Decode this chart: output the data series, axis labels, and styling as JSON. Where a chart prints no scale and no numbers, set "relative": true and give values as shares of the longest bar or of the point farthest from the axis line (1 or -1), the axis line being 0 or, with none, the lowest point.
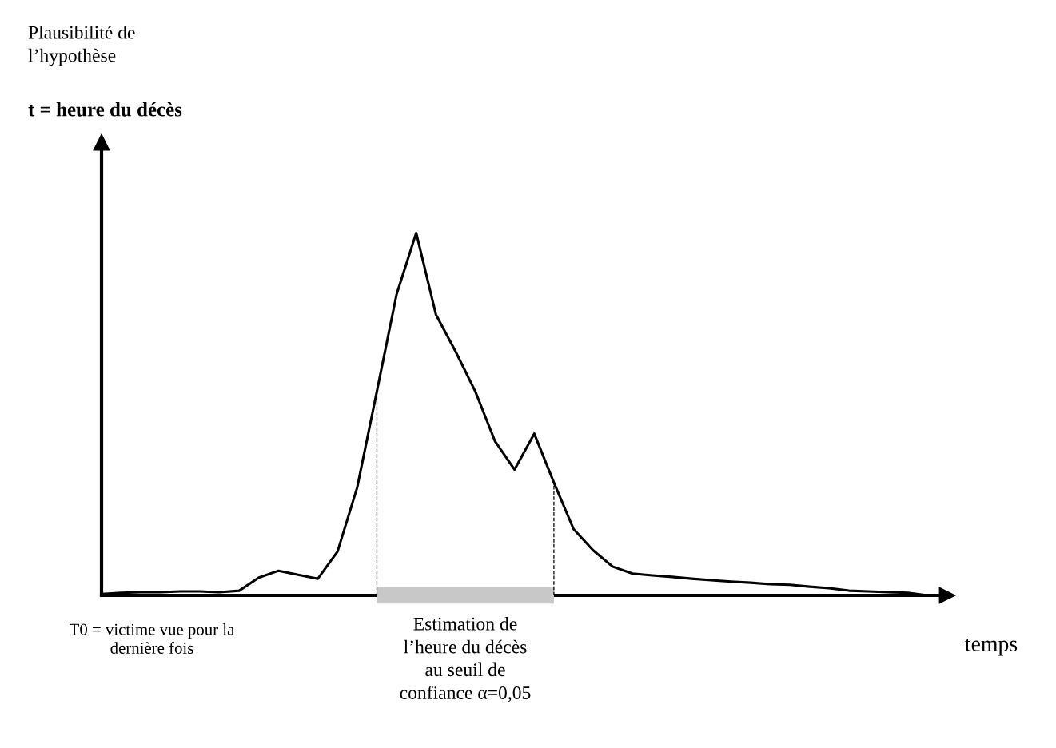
{
  "chart_data": {
    "type": "line",
    "relative": true,
    "title": "t = heure du décès",
    "xlabel": "temps",
    "tick_labels": false,
    "marker": "none",
    "line_style": "solid",
    "categories": [
      null,
      null,
      null,
      null,
      null,
      null,
      null,
      null,
      null,
      null,
      null,
      null,
      null,
      null,
      null,
      null,
      null,
      null,
      null,
      null,
      null,
      null,
      null,
      null,
      null,
      null,
      null,
      null,
      null,
      null,
      null,
      null,
      null,
      null,
      null,
      null,
      null,
      null,
      null,
      null,
      null,
      null,
      null
    ],
    "series": [
      {
        "color": "#000000",
        "values": [
          0.004,
          0.007,
          0.009,
          0.009,
          0.011,
          0.011,
          0.009,
          0.013,
          0.049,
          0.068,
          0.057,
          0.046,
          0.121,
          0.298,
          0.563,
          0.83,
          1,
          0.775,
          0.673,
          0.563,
          0.426,
          0.347,
          0.446,
          0.311,
          0.183,
          0.124,
          0.079,
          0.06,
          0.055,
          0.051,
          0.046,
          0.042,
          0.038,
          0.035,
          0.031,
          0.029,
          0.024,
          0.02,
          0.013,
          0.011,
          0.009,
          0.007,
          0
        ]
      }
    ],
    "annotations": [
      "Plausibilité de\nl’hypothèse",
      "T0 = victime vue pour la\ndernière fois",
      "Estimation de\nl’heure du décès\nau seuil de\nconfiance α=0,05"
    ]
  }
}
